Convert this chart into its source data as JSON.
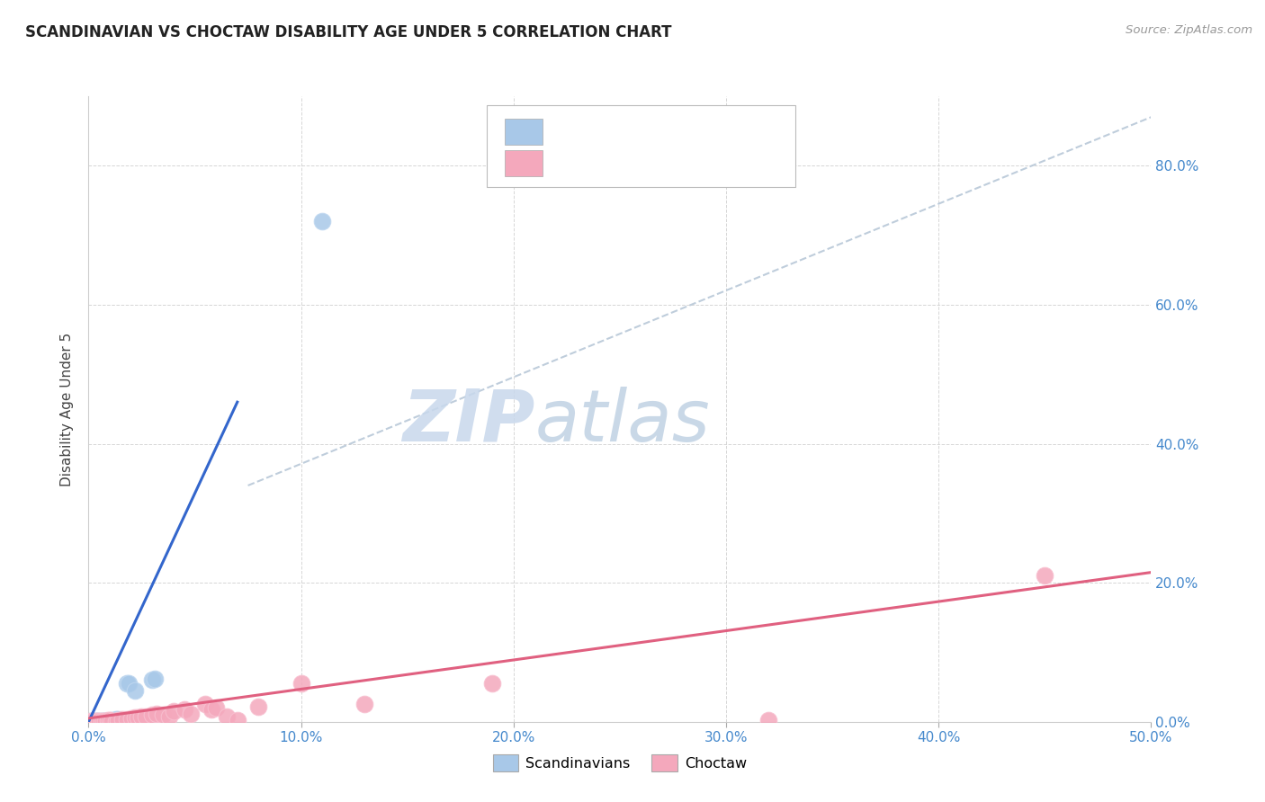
{
  "title": "SCANDINAVIAN VS CHOCTAW DISABILITY AGE UNDER 5 CORRELATION CHART",
  "source": "Source: ZipAtlas.com",
  "ylabel": "Disability Age Under 5",
  "watermark_zip": "ZIP",
  "watermark_atlas": "atlas",
  "xlim": [
    0.0,
    0.5
  ],
  "ylim": [
    0.0,
    0.9
  ],
  "xticks": [
    0.0,
    0.1,
    0.2,
    0.3,
    0.4,
    0.5
  ],
  "yticks": [
    0.0,
    0.2,
    0.4,
    0.6,
    0.8
  ],
  "xticklabels": [
    "0.0%",
    "10.0%",
    "20.0%",
    "30.0%",
    "40.0%",
    "50.0%"
  ],
  "yticklabels_right": [
    "0.0%",
    "20.0%",
    "40.0%",
    "60.0%",
    "80.0%"
  ],
  "background_color": "#ffffff",
  "grid_color": "#cccccc",
  "scandinavian_color": "#a8c8e8",
  "choctaw_color": "#f4a8bc",
  "scandinavian_line_color": "#3366cc",
  "choctaw_line_color": "#e06080",
  "trend_dashed_color": "#b8c8d8",
  "scandinavian_scatter": [
    [
      0.001,
      0.001
    ],
    [
      0.002,
      0.001
    ],
    [
      0.003,
      0.001
    ],
    [
      0.004,
      0.001
    ],
    [
      0.005,
      0.001
    ],
    [
      0.006,
      0.001
    ],
    [
      0.007,
      0.001
    ],
    [
      0.008,
      0.001
    ],
    [
      0.009,
      0.001
    ],
    [
      0.01,
      0.001
    ],
    [
      0.011,
      0.002
    ],
    [
      0.013,
      0.003
    ],
    [
      0.014,
      0.003
    ],
    [
      0.018,
      0.055
    ],
    [
      0.019,
      0.055
    ],
    [
      0.022,
      0.045
    ],
    [
      0.03,
      0.06
    ],
    [
      0.031,
      0.062
    ],
    [
      0.11,
      0.72
    ]
  ],
  "choctaw_scatter": [
    [
      0.001,
      0.001
    ],
    [
      0.002,
      0.001
    ],
    [
      0.003,
      0.001
    ],
    [
      0.004,
      0.001
    ],
    [
      0.005,
      0.001
    ],
    [
      0.006,
      0.001
    ],
    [
      0.007,
      0.001
    ],
    [
      0.008,
      0.001
    ],
    [
      0.009,
      0.002
    ],
    [
      0.01,
      0.002
    ],
    [
      0.011,
      0.001
    ],
    [
      0.013,
      0.001
    ],
    [
      0.014,
      0.002
    ],
    [
      0.016,
      0.004
    ],
    [
      0.018,
      0.004
    ],
    [
      0.02,
      0.005
    ],
    [
      0.022,
      0.006
    ],
    [
      0.023,
      0.006
    ],
    [
      0.025,
      0.008
    ],
    [
      0.027,
      0.008
    ],
    [
      0.03,
      0.01
    ],
    [
      0.032,
      0.012
    ],
    [
      0.035,
      0.01
    ],
    [
      0.038,
      0.008
    ],
    [
      0.04,
      0.015
    ],
    [
      0.045,
      0.018
    ],
    [
      0.048,
      0.012
    ],
    [
      0.055,
      0.025
    ],
    [
      0.058,
      0.018
    ],
    [
      0.06,
      0.02
    ],
    [
      0.065,
      0.008
    ],
    [
      0.07,
      0.002
    ],
    [
      0.08,
      0.022
    ],
    [
      0.1,
      0.055
    ],
    [
      0.13,
      0.025
    ],
    [
      0.19,
      0.055
    ],
    [
      0.32,
      0.002
    ],
    [
      0.45,
      0.21
    ]
  ],
  "scandinavian_line_x": [
    0.0,
    0.07
  ],
  "scandinavian_line_y": [
    0.0,
    0.46
  ],
  "choctaw_line_x": [
    0.0,
    0.5
  ],
  "choctaw_line_y": [
    0.005,
    0.215
  ],
  "dashed_line_x": [
    0.075,
    0.5
  ],
  "dashed_line_y": [
    0.34,
    0.87
  ]
}
